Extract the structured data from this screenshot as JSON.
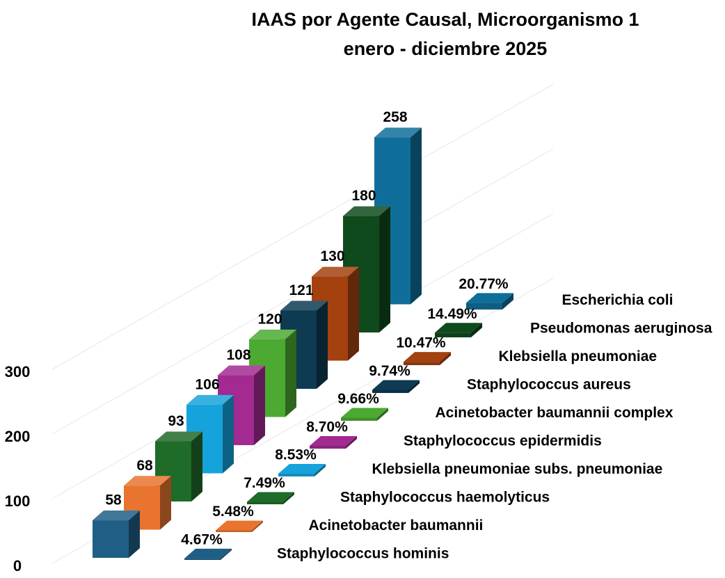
{
  "chart_data": {
    "type": "bar",
    "title": "IAAS por Agente Causal, Microorganismo 1",
    "subtitle": "enero - diciembre 2025",
    "categories": [
      "Staphylococcus hominis",
      "Acinetobacter baumannii",
      "Staphylococcus haemolyticus",
      "Klebsiella pneumoniae subs. pneumoniae",
      "Staphylococcus epidermidis",
      "Acinetobacter baumannii complex",
      "Staphylococcus aureus",
      "Klebsiella pneumoniae",
      "Pseudomonas aeruginosa",
      "Escherichia coli"
    ],
    "colors": [
      "#1f5f86",
      "#e8742f",
      "#1f6b29",
      "#16a3dc",
      "#a22a91",
      "#4caa32",
      "#0e3a52",
      "#a3420f",
      "#0f4a1d",
      "#0f6e99"
    ],
    "series": [
      {
        "values": [
          58,
          68,
          93,
          106,
          108,
          120,
          121,
          130,
          180,
          258
        ]
      },
      {
        "values": [
          4.67,
          5.48,
          7.49,
          8.53,
          8.7,
          9.66,
          9.74,
          10.47,
          14.49,
          20.77
        ],
        "value_labels": [
          "4.67%",
          "5.48%",
          "7.49%",
          "8.53%",
          "8.70%",
          "9.66%",
          "9.74%",
          "10.47%",
          "14.49%",
          "20.77%"
        ]
      }
    ],
    "ylim": [
      0,
      300
    ],
    "yticks": [
      0,
      100,
      200,
      300
    ],
    "grid": true
  }
}
